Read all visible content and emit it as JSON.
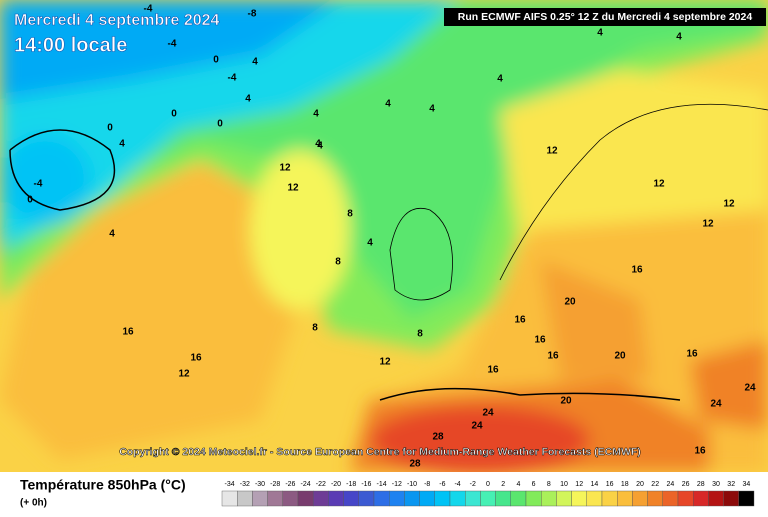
{
  "header": {
    "date": "Mercredi 4 septembre 2024",
    "time": "14:00 locale",
    "run": "Run ECMWF AIFS 0.25° 12 Z du Mercredi 4 septembre 2024"
  },
  "copyright": "Copyright © 2024 Meteociel.fr - Source European Centre for Medium-Range Weather Forecasts (ECMWF)",
  "legend": {
    "title": "Température 850hPa (°C)",
    "lead": "(+ 0h)",
    "scale": [
      -34,
      -32,
      -30,
      -28,
      -26,
      -24,
      -22,
      -20,
      -18,
      -16,
      -14,
      -12,
      -10,
      -8,
      -6,
      -4,
      -2,
      0,
      2,
      4,
      6,
      8,
      10,
      12,
      14,
      16,
      18,
      20,
      22,
      24,
      26,
      28,
      30,
      32,
      34
    ],
    "colors": [
      "#e6e6e6",
      "#c8c8c8",
      "#b4a0b4",
      "#a07896",
      "#8c5a82",
      "#783c6e",
      "#6e3c96",
      "#5a3cb4",
      "#4646c8",
      "#3c5ad2",
      "#2d6ee6",
      "#1e82f0",
      "#0a96f0",
      "#00aaf5",
      "#00c3f5",
      "#14d7eb",
      "#3ce6d2",
      "#46f0b4",
      "#46e68c",
      "#5ae66e",
      "#82eb5a",
      "#aaf05a",
      "#d2f55a",
      "#f5f55a",
      "#fae650",
      "#fad246",
      "#fabe3c",
      "#f5a032",
      "#f08228",
      "#eb6428",
      "#e64628",
      "#d72828",
      "#b41414",
      "#8c0a0a",
      "#000000"
    ]
  },
  "map_labels": [
    "-8",
    "-4",
    "-4",
    "4",
    "0",
    "-4",
    "4",
    "0",
    "4",
    "0",
    "0",
    "4",
    "-4",
    "0",
    "4",
    "4",
    "4",
    "4",
    "4",
    "8",
    "8",
    "4",
    "12",
    "12",
    "8",
    "8",
    "12",
    "16",
    "16",
    "12",
    "16",
    "20",
    "16",
    "20",
    "24",
    "24",
    "28",
    "28",
    "16",
    "16",
    "12",
    "12",
    "12",
    "16",
    "20",
    "16",
    "24",
    "24",
    "16",
    "4",
    "4",
    "4",
    "12"
  ]
}
